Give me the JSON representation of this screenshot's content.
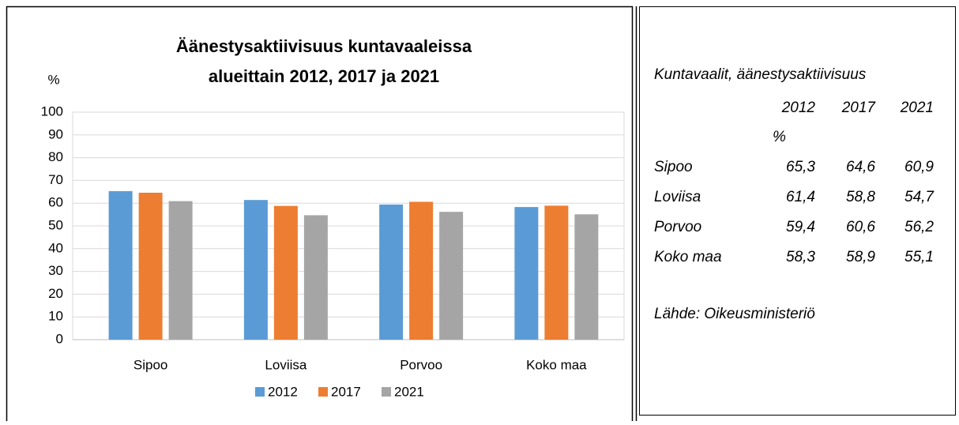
{
  "chart_data": {
    "type": "bar",
    "title": "Äänestysaktiivisuus kuntavaaleissa alueittain 2012, 2017 ja 2021",
    "title_lines": [
      "Äänestysaktiivisuus kuntavaaleissa",
      "alueittain 2012, 2017 ja 2021"
    ],
    "y_label": "%",
    "categories": [
      "Sipoo",
      "Loviisa",
      "Porvoo",
      "Koko maa"
    ],
    "series": [
      {
        "name": "2012",
        "color": "#5b9bd5",
        "values": [
          65.3,
          61.4,
          59.4,
          58.3
        ]
      },
      {
        "name": "2017",
        "color": "#ed7d31",
        "values": [
          64.6,
          58.8,
          60.6,
          58.9
        ]
      },
      {
        "name": "2021",
        "color": "#a5a5a5",
        "values": [
          60.9,
          54.7,
          56.2,
          55.1
        ]
      }
    ],
    "ylim": [
      0,
      100
    ],
    "yticks": [
      0,
      10,
      20,
      30,
      40,
      50,
      60,
      70,
      80,
      90,
      100
    ],
    "grid": true,
    "legend": "bottom"
  },
  "table": {
    "title": "Kuntavaalit, äänestysaktiivisuus",
    "header": [
      "2012",
      "2017",
      "2021"
    ],
    "unit": "%",
    "rows": [
      [
        "Sipoo",
        "65,3",
        "64,6",
        "60,9"
      ],
      [
        "Loviisa",
        "61,4",
        "58,8",
        "54,7"
      ],
      [
        "Porvoo",
        "59,4",
        "60,6",
        "56,2"
      ],
      [
        "Koko maa",
        "58,3",
        "58,9",
        "55,1"
      ]
    ],
    "source": "Lähde: Oikeusministeriö"
  }
}
